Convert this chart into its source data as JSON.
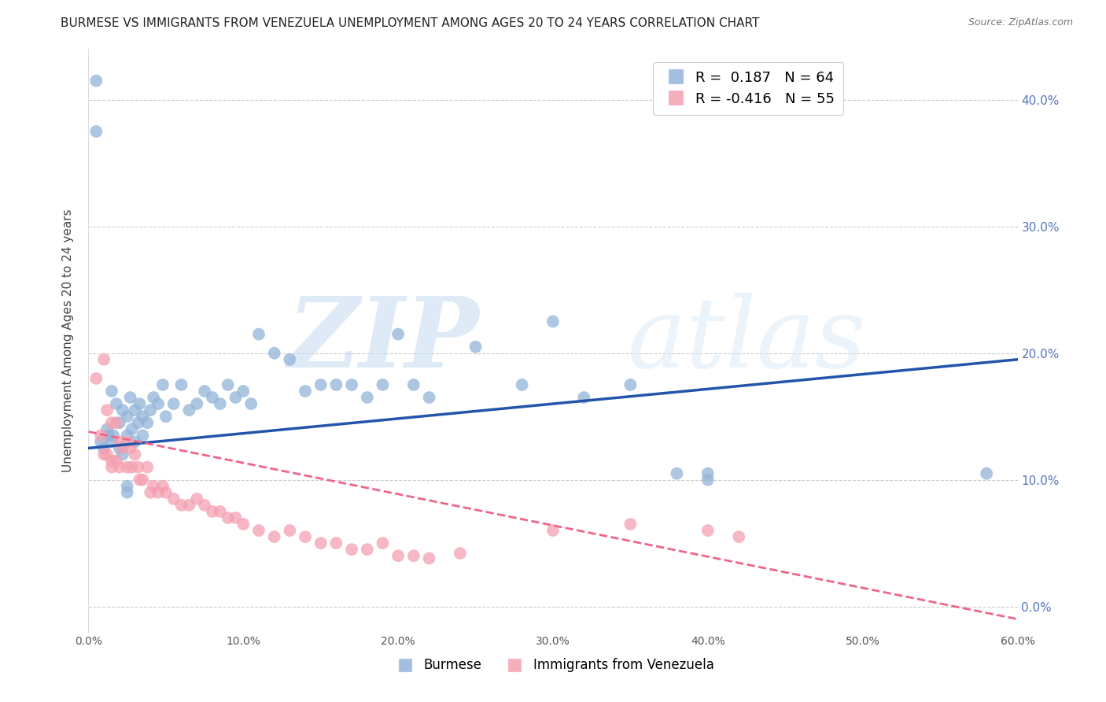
{
  "title": "BURMESE VS IMMIGRANTS FROM VENEZUELA UNEMPLOYMENT AMONG AGES 20 TO 24 YEARS CORRELATION CHART",
  "source": "Source: ZipAtlas.com",
  "ylabel": "Unemployment Among Ages 20 to 24 years",
  "xlim": [
    0.0,
    0.6
  ],
  "ylim": [
    -0.02,
    0.44
  ],
  "yticks": [
    0.0,
    0.1,
    0.2,
    0.3,
    0.4
  ],
  "xticks": [
    0.0,
    0.1,
    0.2,
    0.3,
    0.4,
    0.5,
    0.6
  ],
  "blue_R": 0.187,
  "blue_N": 64,
  "pink_R": -0.416,
  "pink_N": 55,
  "blue_color": "#92B4D8",
  "pink_color": "#F4A0B0",
  "blue_line_color": "#2255AA",
  "pink_line_color": "#EE6688",
  "blue_label": "Burmese",
  "pink_label": "Immigrants from Venezuela",
  "watermark_zip": "ZIP",
  "watermark_atlas": "atlas",
  "title_fontsize": 11,
  "axis_tick_color": "#5577BB",
  "blue_line_start_y": 0.125,
  "blue_line_end_y": 0.195,
  "pink_line_start_y": 0.138,
  "pink_line_end_y": -0.01,
  "blue_scatter_x": [
    0.005,
    0.005,
    0.008,
    0.01,
    0.012,
    0.013,
    0.015,
    0.015,
    0.016,
    0.018,
    0.02,
    0.02,
    0.022,
    0.022,
    0.025,
    0.025,
    0.027,
    0.028,
    0.03,
    0.03,
    0.032,
    0.033,
    0.035,
    0.035,
    0.038,
    0.04,
    0.042,
    0.045,
    0.048,
    0.05,
    0.055,
    0.06,
    0.065,
    0.07,
    0.075,
    0.08,
    0.085,
    0.09,
    0.095,
    0.1,
    0.105,
    0.11,
    0.12,
    0.13,
    0.14,
    0.15,
    0.16,
    0.17,
    0.18,
    0.19,
    0.2,
    0.21,
    0.22,
    0.25,
    0.28,
    0.3,
    0.32,
    0.35,
    0.38,
    0.4,
    0.025,
    0.025,
    0.58,
    0.4
  ],
  "blue_scatter_y": [
    0.415,
    0.375,
    0.13,
    0.125,
    0.14,
    0.135,
    0.17,
    0.13,
    0.135,
    0.16,
    0.145,
    0.125,
    0.155,
    0.12,
    0.15,
    0.135,
    0.165,
    0.14,
    0.155,
    0.13,
    0.145,
    0.16,
    0.135,
    0.15,
    0.145,
    0.155,
    0.165,
    0.16,
    0.175,
    0.15,
    0.16,
    0.175,
    0.155,
    0.16,
    0.17,
    0.165,
    0.16,
    0.175,
    0.165,
    0.17,
    0.16,
    0.215,
    0.2,
    0.195,
    0.17,
    0.175,
    0.175,
    0.175,
    0.165,
    0.175,
    0.215,
    0.175,
    0.165,
    0.205,
    0.175,
    0.225,
    0.165,
    0.175,
    0.105,
    0.1,
    0.09,
    0.095,
    0.105,
    0.105
  ],
  "pink_scatter_x": [
    0.005,
    0.008,
    0.01,
    0.012,
    0.015,
    0.015,
    0.018,
    0.02,
    0.022,
    0.025,
    0.027,
    0.028,
    0.03,
    0.032,
    0.033,
    0.035,
    0.038,
    0.04,
    0.042,
    0.045,
    0.048,
    0.05,
    0.055,
    0.06,
    0.065,
    0.07,
    0.075,
    0.08,
    0.085,
    0.09,
    0.095,
    0.1,
    0.11,
    0.12,
    0.13,
    0.14,
    0.15,
    0.16,
    0.17,
    0.18,
    0.19,
    0.2,
    0.21,
    0.22,
    0.24,
    0.3,
    0.35,
    0.4,
    0.42,
    0.01,
    0.012,
    0.015,
    0.018,
    0.02,
    0.025
  ],
  "pink_scatter_y": [
    0.18,
    0.135,
    0.195,
    0.155,
    0.145,
    0.115,
    0.145,
    0.13,
    0.125,
    0.13,
    0.125,
    0.11,
    0.12,
    0.11,
    0.1,
    0.1,
    0.11,
    0.09,
    0.095,
    0.09,
    0.095,
    0.09,
    0.085,
    0.08,
    0.08,
    0.085,
    0.08,
    0.075,
    0.075,
    0.07,
    0.07,
    0.065,
    0.06,
    0.055,
    0.06,
    0.055,
    0.05,
    0.05,
    0.045,
    0.045,
    0.05,
    0.04,
    0.04,
    0.038,
    0.042,
    0.06,
    0.065,
    0.06,
    0.055,
    0.12,
    0.12,
    0.11,
    0.115,
    0.11,
    0.11
  ]
}
